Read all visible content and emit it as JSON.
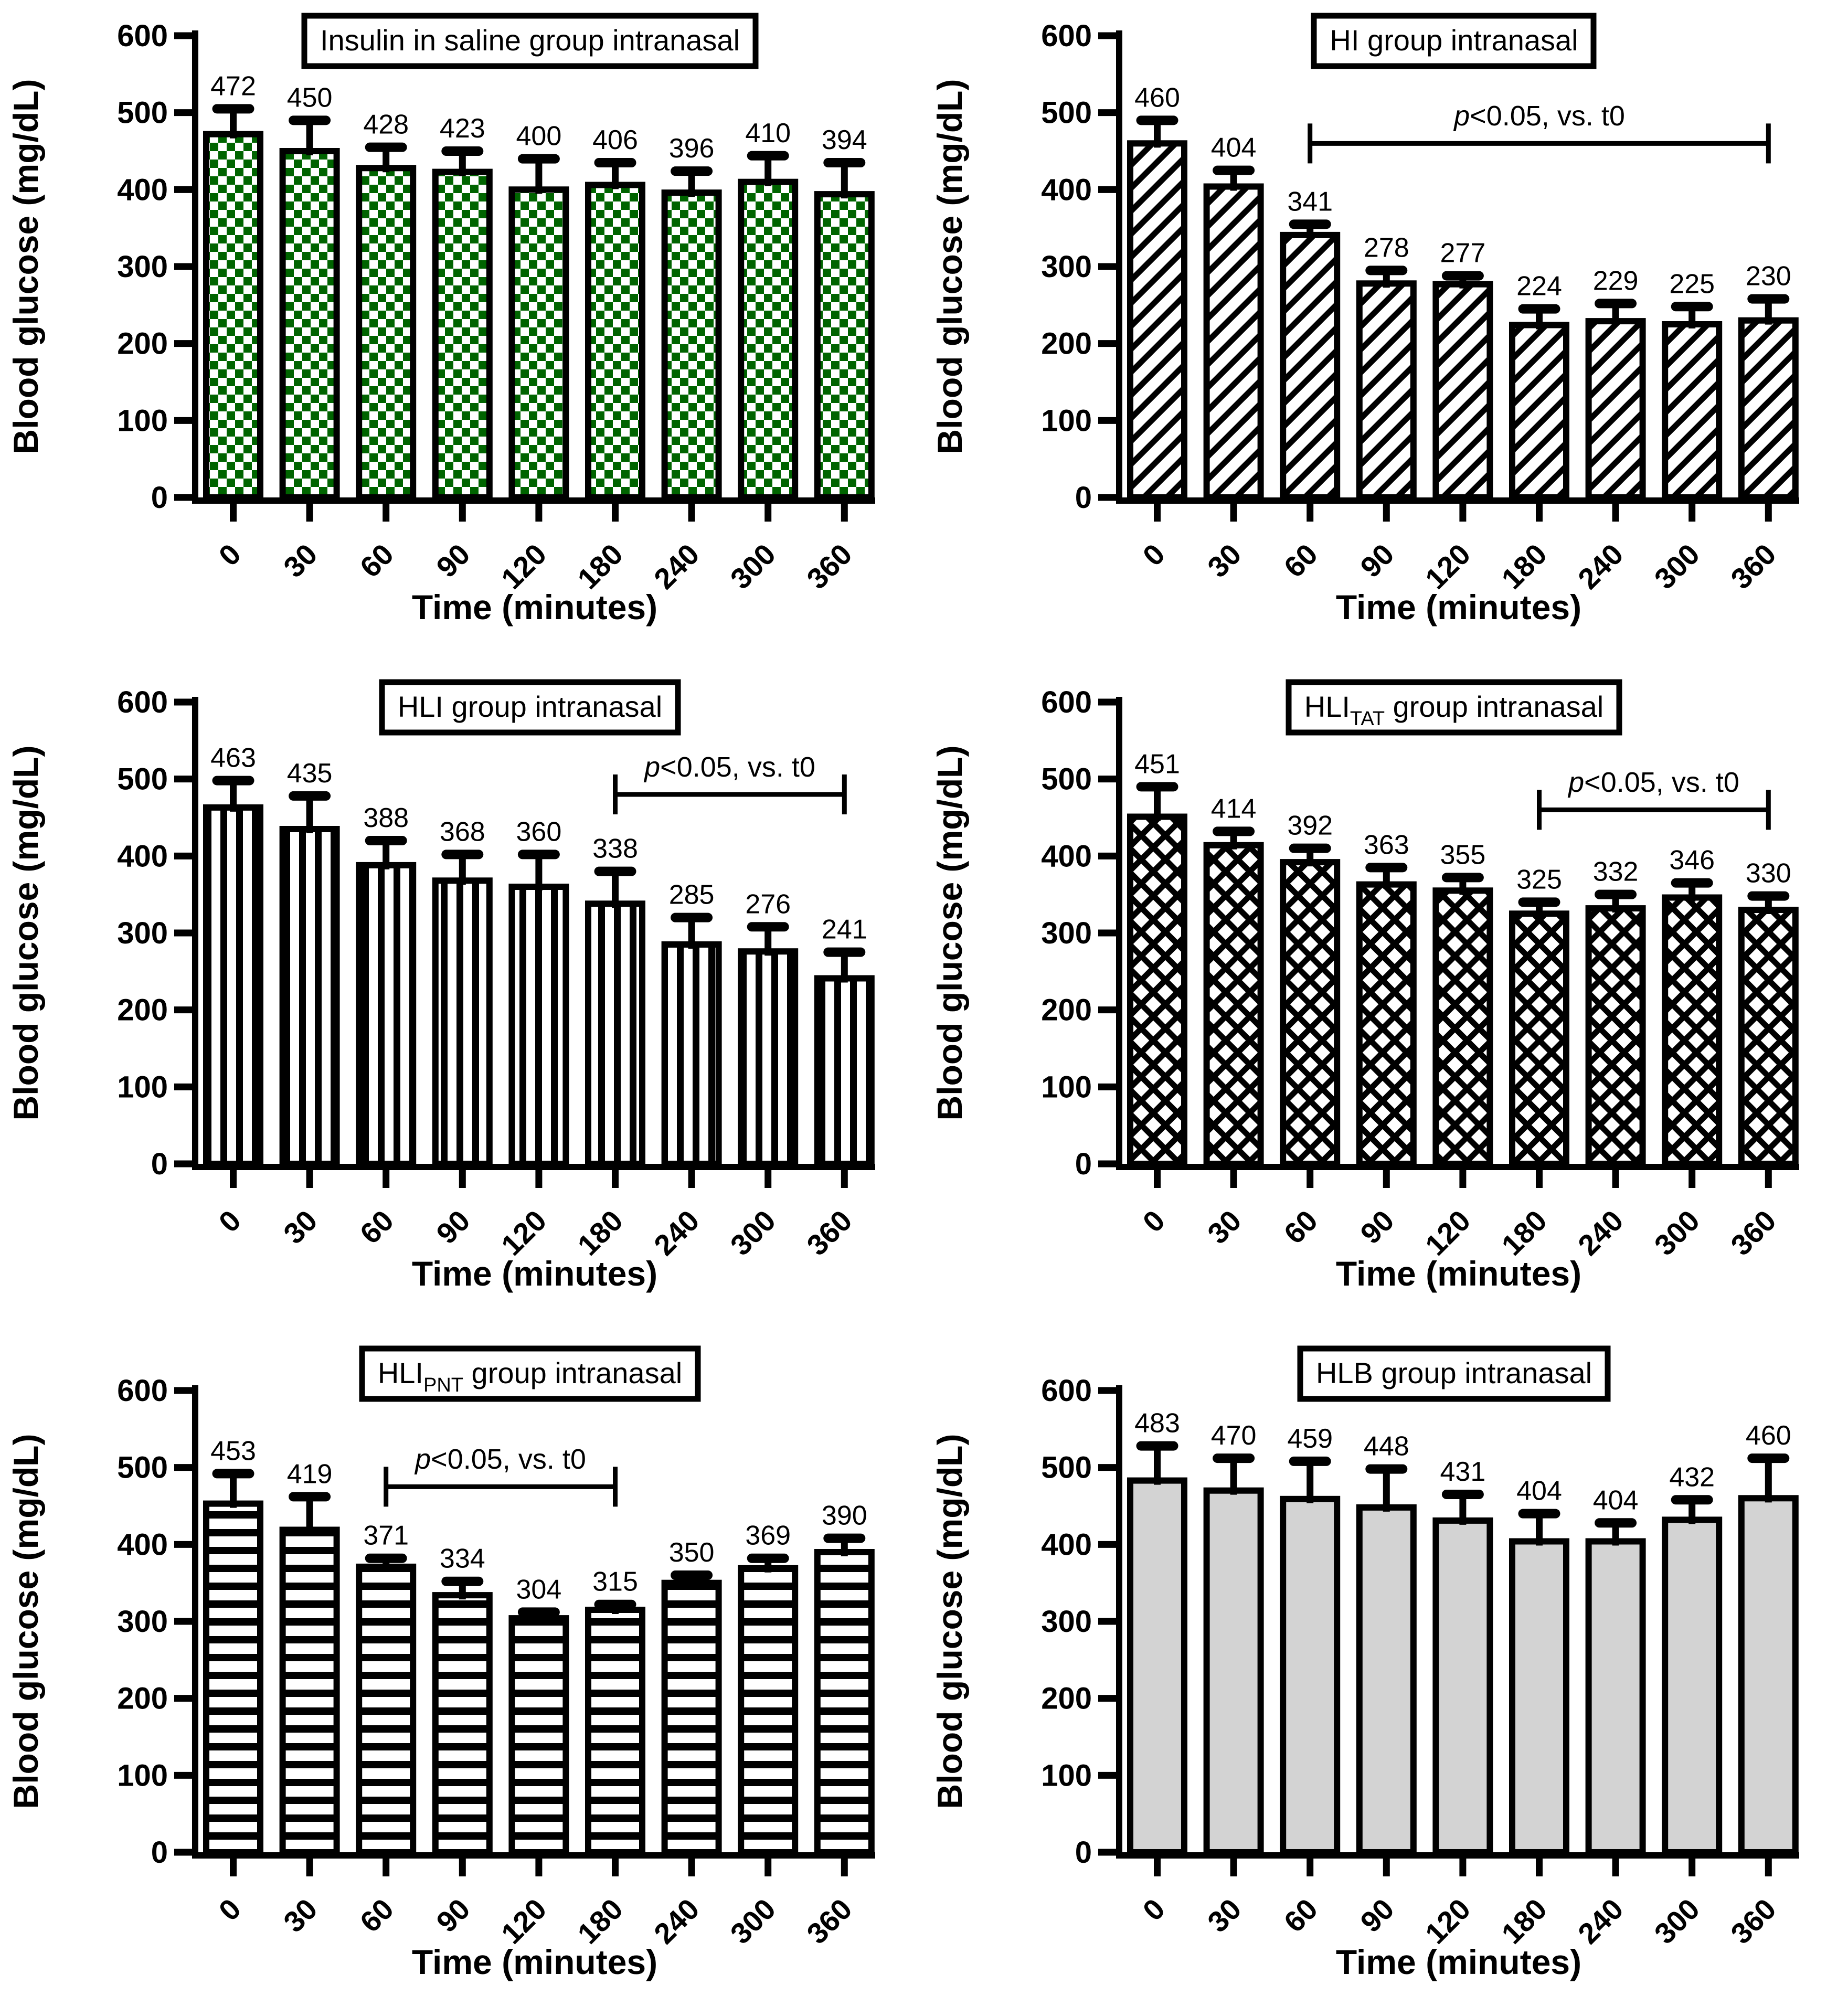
{
  "figure": {
    "background": "#ffffff",
    "ylabel": "Blood glucose (mg/dL)",
    "xlabel": "Time (minutes)",
    "green": "#006400",
    "gray": "#d3d3d3",
    "black": "#000000"
  },
  "chart_data": [
    {
      "type": "bar",
      "key": "insulin-saline-intranasal",
      "title": "Insulin in saline group intranasal",
      "title_parts": [
        {
          "text": "Insulin in saline group intranasal"
        }
      ],
      "pattern": "checker",
      "pattern_color": "#006400",
      "xlabel": "Time (minutes)",
      "ylabel": "Blood glucose (mg/dL)",
      "ylim": [
        0,
        600
      ],
      "yticks": [
        0,
        100,
        200,
        300,
        400,
        500,
        600
      ],
      "categories": [
        "0",
        "30",
        "60",
        "90",
        "120",
        "180",
        "240",
        "300",
        "360"
      ],
      "values": [
        472,
        450,
        428,
        423,
        400,
        406,
        396,
        410,
        394
      ],
      "sd": [
        33,
        40,
        27,
        27,
        40,
        29,
        28,
        34,
        41
      ],
      "significance": null,
      "grid": {
        "row": 0,
        "col": 0
      }
    },
    {
      "type": "bar",
      "key": "hi-intranasal",
      "title": "HI group intranasal",
      "title_parts": [
        {
          "text": "HI group intranasal"
        }
      ],
      "pattern": "diagonal",
      "pattern_color": "#000000",
      "xlabel": "Time (minutes)",
      "ylabel": "Blood glucose (mg/dL)",
      "ylim": [
        0,
        600
      ],
      "yticks": [
        0,
        100,
        200,
        300,
        400,
        500,
        600
      ],
      "categories": [
        "0",
        "30",
        "60",
        "90",
        "120",
        "180",
        "240",
        "300",
        "360"
      ],
      "values": [
        460,
        404,
        341,
        278,
        277,
        224,
        229,
        225,
        230
      ],
      "sd": [
        30,
        21,
        14,
        17,
        11,
        21,
        23,
        23,
        28
      ],
      "significance": {
        "label": "p<0.05, vs. t0",
        "label_italic": "p",
        "label_rest": "<0.05, vs. t0",
        "from_index": 2,
        "to_index": 8,
        "y_value": 460
      },
      "grid": {
        "row": 0,
        "col": 1
      }
    },
    {
      "type": "bar",
      "key": "hli-intranasal",
      "title": "HLI group intranasal",
      "title_parts": [
        {
          "text": "HLI group intranasal"
        }
      ],
      "pattern": "vertical",
      "pattern_color": "#000000",
      "xlabel": "Time (minutes)",
      "ylabel": "Blood glucose (mg/dL)",
      "ylim": [
        0,
        600
      ],
      "yticks": [
        0,
        100,
        200,
        300,
        400,
        500,
        600
      ],
      "categories": [
        "0",
        "30",
        "60",
        "90",
        "120",
        "180",
        "240",
        "300",
        "360"
      ],
      "values": [
        463,
        435,
        388,
        368,
        360,
        338,
        285,
        276,
        241
      ],
      "sd": [
        35,
        43,
        32,
        34,
        42,
        42,
        35,
        32,
        34
      ],
      "significance": {
        "label": "p<0.05, vs. t0",
        "label_italic": "p",
        "label_rest": "<0.05, vs. t0",
        "from_index": 5,
        "to_index": 8,
        "y_value": 480
      },
      "grid": {
        "row": 1,
        "col": 0
      }
    },
    {
      "type": "bar",
      "key": "hli-tat-intranasal",
      "title": "HLI(TAT) group intranasal",
      "title_parts": [
        {
          "text": "HLI"
        },
        {
          "text": "TAT",
          "sub": true
        },
        {
          "text": " group intranasal"
        }
      ],
      "pattern": "crosshatch",
      "pattern_color": "#000000",
      "xlabel": "Time (minutes)",
      "ylabel": "Blood glucose (mg/dL)",
      "ylim": [
        0,
        600
      ],
      "yticks": [
        0,
        100,
        200,
        300,
        400,
        500,
        600
      ],
      "categories": [
        "0",
        "30",
        "60",
        "90",
        "120",
        "180",
        "240",
        "300",
        "360"
      ],
      "values": [
        451,
        414,
        392,
        363,
        355,
        325,
        332,
        346,
        330
      ],
      "sd": [
        39,
        18,
        18,
        22,
        17,
        15,
        18,
        19,
        18
      ],
      "significance": {
        "label": "p<0.05, vs. t0",
        "label_italic": "p",
        "label_rest": "<0.05, vs. t0",
        "from_index": 5,
        "to_index": 8,
        "y_value": 460
      },
      "grid": {
        "row": 1,
        "col": 1
      }
    },
    {
      "type": "bar",
      "key": "hli-pnt-intranasal",
      "title": "HLI(PNT) group intranasal",
      "title_parts": [
        {
          "text": "HLI"
        },
        {
          "text": "PNT",
          "sub": true
        },
        {
          "text": " group intranasal"
        }
      ],
      "pattern": "horizontal",
      "pattern_color": "#000000",
      "xlabel": "Time (minutes)",
      "ylabel": "Blood glucose (mg/dL)",
      "ylim": [
        0,
        600
      ],
      "yticks": [
        0,
        100,
        200,
        300,
        400,
        500,
        600
      ],
      "categories": [
        "0",
        "30",
        "60",
        "90",
        "120",
        "180",
        "240",
        "300",
        "360"
      ],
      "values": [
        453,
        419,
        371,
        334,
        304,
        315,
        350,
        369,
        390
      ],
      "sd": [
        39,
        43,
        11,
        18,
        8,
        7,
        10,
        13,
        18
      ],
      "significance": {
        "label": "p<0.05, vs. t0",
        "label_italic": "p",
        "label_rest": "<0.05, vs. t0",
        "from_index": 2,
        "to_index": 5,
        "y_value": 475
      },
      "grid": {
        "row": 2,
        "col": 0
      }
    },
    {
      "type": "bar",
      "key": "hlb-intranasal",
      "title": "HLB group intranasal",
      "title_parts": [
        {
          "text": "HLB group intranasal"
        }
      ],
      "pattern": "solid",
      "pattern_color": "#d3d3d3",
      "xlabel": "Time (minutes)",
      "ylabel": "Blood glucose (mg/dL)",
      "ylim": [
        0,
        600
      ],
      "yticks": [
        0,
        100,
        200,
        300,
        400,
        500,
        600
      ],
      "categories": [
        "0",
        "30",
        "60",
        "90",
        "120",
        "180",
        "240",
        "300",
        "360"
      ],
      "values": [
        483,
        470,
        459,
        448,
        431,
        404,
        404,
        432,
        460
      ],
      "sd": [
        45,
        42,
        49,
        50,
        34,
        36,
        24,
        26,
        52
      ],
      "significance": null,
      "grid": {
        "row": 2,
        "col": 1
      }
    }
  ]
}
